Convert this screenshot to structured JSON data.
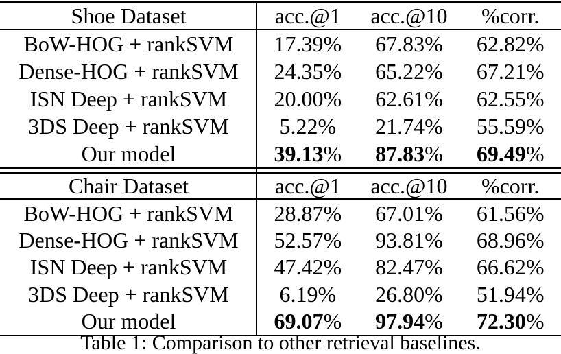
{
  "table": {
    "percent_sign": "%",
    "sections": [
      {
        "dataset": "Shoe Dataset",
        "columns": [
          "acc.@1",
          "acc.@10",
          "%corr."
        ],
        "rows": [
          {
            "label": "BoW-HOG + rankSVM",
            "values": [
              "17.39",
              "67.83",
              "62.82"
            ]
          },
          {
            "label": "Dense-HOG + rankSVM",
            "values": [
              "24.35",
              "65.22",
              "67.21"
            ]
          },
          {
            "label": "ISN Deep + rankSVM",
            "values": [
              "20.00",
              "62.61",
              "62.55"
            ]
          },
          {
            "label": "3DS Deep + rankSVM",
            "values": [
              "5.22",
              "21.74",
              "55.59"
            ]
          },
          {
            "label": "Our model",
            "values": [
              "39.13",
              "87.83",
              "69.49"
            ],
            "emphasis": true
          }
        ]
      },
      {
        "dataset": "Chair Dataset",
        "columns": [
          "acc.@1",
          "acc.@10",
          "%corr."
        ],
        "rows": [
          {
            "label": "BoW-HOG + rankSVM",
            "values": [
              "28.87",
              "67.01",
              "61.56"
            ]
          },
          {
            "label": "Dense-HOG + rankSVM",
            "values": [
              "52.57",
              "93.81",
              "68.96"
            ]
          },
          {
            "label": "ISN Deep + rankSVM",
            "values": [
              "47.42",
              "82.47",
              "66.62"
            ]
          },
          {
            "label": "3DS Deep + rankSVM",
            "values": [
              "6.19",
              "26.80",
              "51.94"
            ]
          },
          {
            "label": "Our model",
            "values": [
              "69.07",
              "97.94",
              "72.30"
            ],
            "emphasis": true
          }
        ]
      }
    ]
  },
  "caption": "Table 1: Comparison to other retrieval baselines.",
  "colors": {
    "text": "#000000",
    "background": "#ffffff",
    "rule": "#000000"
  }
}
